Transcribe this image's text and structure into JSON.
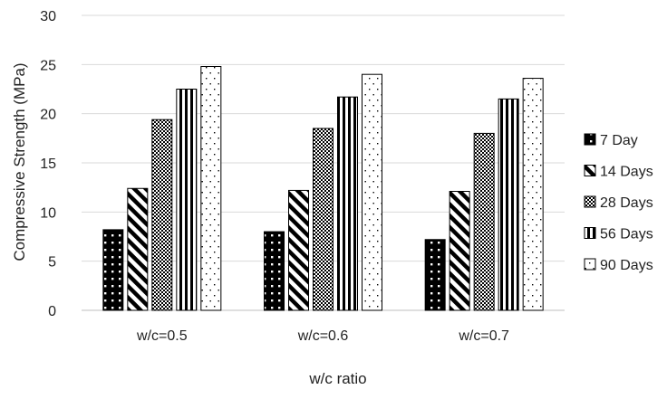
{
  "chart_data": {
    "type": "bar",
    "title": "",
    "xlabel": "w/c ratio",
    "ylabel": "Compressive Strength (MPa)",
    "ylim": [
      0,
      30
    ],
    "yticks": [
      "0",
      "5",
      "10",
      "15",
      "20",
      "25",
      "30"
    ],
    "grid": true,
    "legend_position": "right",
    "categories": [
      "w/c=0.5",
      "w/c=0.6",
      "w/c=0.7"
    ],
    "series": [
      {
        "name": "7 Day",
        "values": [
          8.2,
          8.0,
          7.2
        ],
        "pattern": "dots-on-black"
      },
      {
        "name": "14 Days",
        "values": [
          12.4,
          12.2,
          12.1
        ],
        "pattern": "diagonal-stripes"
      },
      {
        "name": "28 Days",
        "values": [
          19.4,
          18.5,
          18.0
        ],
        "pattern": "checker"
      },
      {
        "name": "56 Days",
        "values": [
          22.5,
          21.7,
          21.5
        ],
        "pattern": "vertical-stripes"
      },
      {
        "name": "90 Days",
        "values": [
          24.8,
          24.0,
          23.6
        ],
        "pattern": "sparse-dots"
      }
    ],
    "colors": {
      "grid": "#d9d9d9",
      "ink": "#000000",
      "background": "#ffffff"
    }
  }
}
